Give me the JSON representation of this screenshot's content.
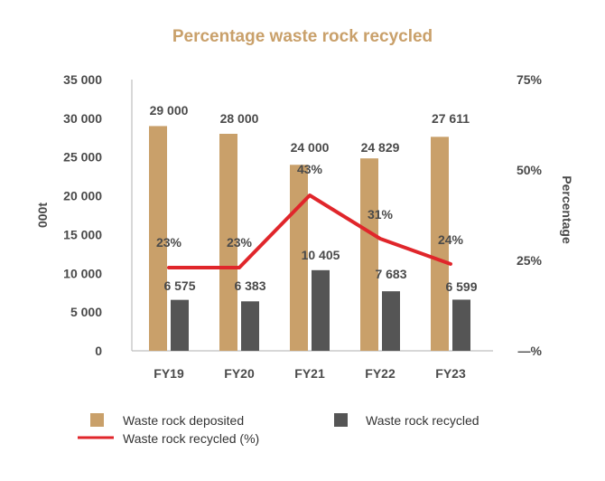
{
  "chart_data": {
    "type": "bar",
    "title": "Percentage waste rock recycled",
    "categories": [
      "FY19",
      "FY20",
      "FY21",
      "FY22",
      "FY23"
    ],
    "series": [
      {
        "name": "Waste rock deposited",
        "kind": "bar",
        "axis": "left",
        "color": "#c9a06a",
        "values": [
          29000,
          28000,
          24000,
          24829,
          27611
        ],
        "labels": [
          "29 000",
          "28 000",
          "24 000",
          "24 829",
          "27 611"
        ]
      },
      {
        "name": "Waste rock recycled",
        "kind": "bar",
        "axis": "left",
        "color": "#555555",
        "values": [
          6575,
          6383,
          10405,
          7683,
          6599
        ],
        "labels": [
          "6 575",
          "6 383",
          "10 405",
          "7 683",
          "6 599"
        ]
      },
      {
        "name": "Waste rock recycled (%)",
        "kind": "line",
        "axis": "right",
        "color": "#e0262b",
        "values": [
          23,
          23,
          43,
          31,
          24
        ],
        "labels": [
          "23%",
          "23%",
          "43%",
          "31%",
          "24%"
        ]
      }
    ],
    "ylabel": "000t",
    "ylim": [
      0,
      35000
    ],
    "y_ticks": [
      "0",
      "5 000",
      "10 000",
      "15 000",
      "20 000",
      "25 000",
      "30 000",
      "35 000"
    ],
    "y2label": "Percentage",
    "y2lim": [
      0,
      75
    ],
    "y2_ticks": [
      "—%",
      "25%",
      "50%",
      "75%"
    ],
    "grid": false,
    "legend_position": "bottom",
    "colors": {
      "title": "#c9a06a"
    }
  }
}
